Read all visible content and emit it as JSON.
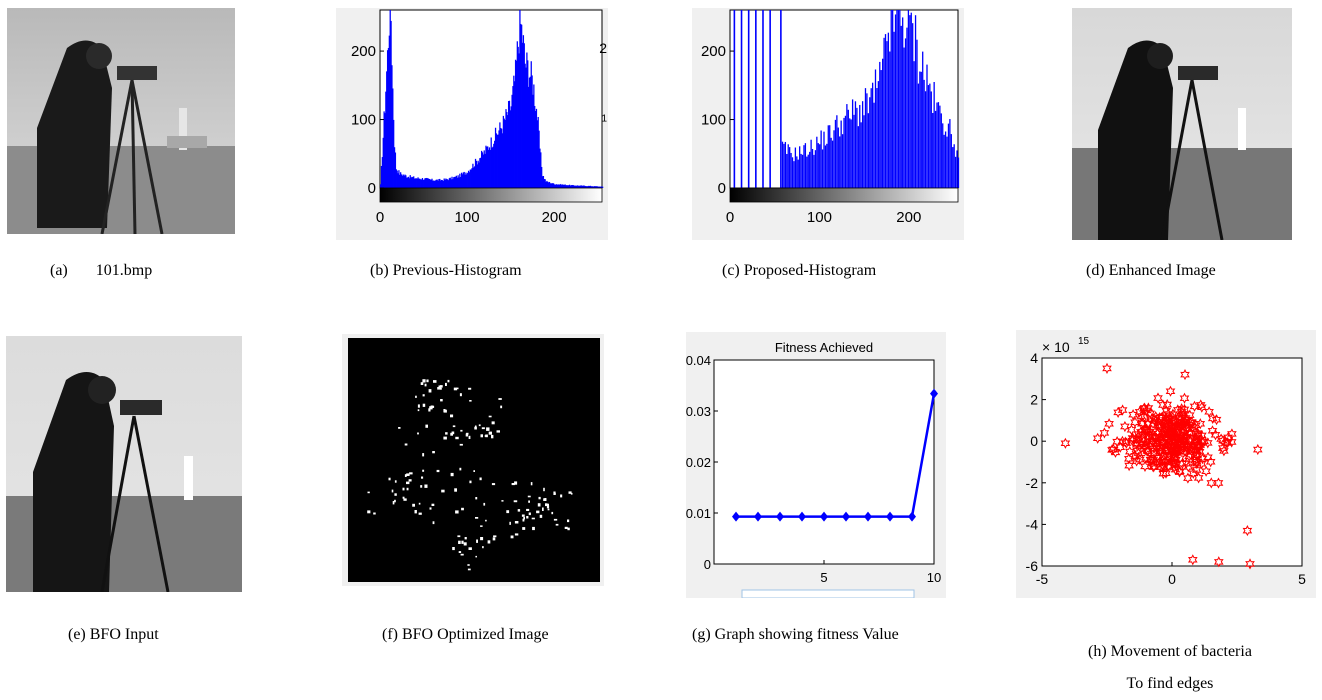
{
  "figure": {
    "a": {
      "caption_letter": "(a)",
      "caption_text": "101.bmp"
    },
    "b": {
      "caption": "(b) Previous-Histogram"
    },
    "c": {
      "caption": "(c) Proposed-Histogram"
    },
    "d": {
      "caption": "(d) Enhanced Image"
    },
    "e": {
      "caption": "(e) BFO Input"
    },
    "f": {
      "caption": "(f) BFO Optimized Image"
    },
    "g": {
      "caption": "(g) Graph showing fitness Value"
    },
    "h": {
      "caption_line1": "(h) Movement of bacteria",
      "caption_line2": "To find edges"
    }
  },
  "chart_data": [
    {
      "id": "b",
      "type": "bar",
      "x_ticks": [
        0,
        100,
        200
      ],
      "y_ticks": [
        "0",
        "100",
        "200"
      ],
      "xlim": [
        0,
        255
      ],
      "ylim": [
        0,
        260
      ],
      "bar_color": "#0000ff",
      "colorbar": "grayscale",
      "right_edge_labels": [
        "2",
        "1"
      ],
      "profile": [
        [
          0,
          5
        ],
        [
          8,
          200
        ],
        [
          10,
          260
        ],
        [
          12,
          260
        ],
        [
          14,
          150
        ],
        [
          16,
          70
        ],
        [
          18,
          30
        ],
        [
          22,
          22
        ],
        [
          30,
          18
        ],
        [
          40,
          15
        ],
        [
          50,
          14
        ],
        [
          60,
          12
        ],
        [
          70,
          12
        ],
        [
          80,
          14
        ],
        [
          90,
          18
        ],
        [
          100,
          25
        ],
        [
          110,
          40
        ],
        [
          120,
          55
        ],
        [
          130,
          75
        ],
        [
          140,
          95
        ],
        [
          145,
          110
        ],
        [
          150,
          125
        ],
        [
          155,
          170
        ],
        [
          158,
          220
        ],
        [
          160,
          255
        ],
        [
          163,
          230
        ],
        [
          166,
          190
        ],
        [
          170,
          180
        ],
        [
          175,
          160
        ],
        [
          180,
          110
        ],
        [
          183,
          60
        ],
        [
          186,
          20
        ],
        [
          190,
          10
        ],
        [
          200,
          6
        ],
        [
          220,
          4
        ],
        [
          240,
          3
        ],
        [
          255,
          2
        ]
      ]
    },
    {
      "id": "c",
      "type": "bar",
      "x_ticks": [
        0,
        100,
        200
      ],
      "y_ticks": [
        "0",
        "100",
        "200"
      ],
      "xlim": [
        0,
        255
      ],
      "ylim": [
        0,
        260
      ],
      "bar_color": "#0000ff",
      "colorbar": "grayscale",
      "spike_positions": [
        4,
        12,
        20,
        28,
        36,
        44,
        56
      ],
      "profile": [
        [
          58,
          60
        ],
        [
          70,
          50
        ],
        [
          80,
          55
        ],
        [
          90,
          60
        ],
        [
          100,
          70
        ],
        [
          110,
          80
        ],
        [
          120,
          95
        ],
        [
          130,
          105
        ],
        [
          140,
          115
        ],
        [
          150,
          120
        ],
        [
          160,
          140
        ],
        [
          170,
          170
        ],
        [
          175,
          230
        ],
        [
          180,
          255
        ],
        [
          185,
          260
        ],
        [
          190,
          250
        ],
        [
          195,
          255
        ],
        [
          200,
          240
        ],
        [
          205,
          230
        ],
        [
          210,
          200
        ],
        [
          220,
          160
        ],
        [
          230,
          120
        ],
        [
          240,
          100
        ],
        [
          250,
          70
        ],
        [
          255,
          40
        ]
      ]
    },
    {
      "id": "g",
      "type": "line",
      "title": "Fitness Achieved",
      "x": [
        1,
        2,
        3,
        4,
        5,
        6,
        7,
        8,
        9,
        10
      ],
      "y": [
        0.0093,
        0.0093,
        0.0093,
        0.0093,
        0.0093,
        0.0093,
        0.0093,
        0.0093,
        0.0093,
        0.0334
      ],
      "x_ticks": [
        "5",
        "10"
      ],
      "x_tick_values": [
        5,
        10
      ],
      "y_ticks": [
        "0",
        "0.01",
        "0.02",
        "0.03",
        "0.04"
      ],
      "y_tick_values": [
        0,
        0.01,
        0.02,
        0.03,
        0.04
      ],
      "xlim": [
        0,
        10
      ],
      "ylim": [
        0,
        0.04
      ],
      "line_color": "#0000ff",
      "marker": "diamond"
    },
    {
      "id": "h",
      "type": "scatter",
      "exponent_label": "× 10",
      "exponent_power": "15",
      "x_ticks": [
        "-5",
        "0",
        "5"
      ],
      "x_tick_values": [
        -5,
        0,
        5
      ],
      "y_ticks": [
        "4",
        "2",
        "0",
        "-2",
        "-4",
        "-6"
      ],
      "y_tick_values": [
        4,
        2,
        0,
        -2,
        -4,
        -6
      ],
      "xlim": [
        -5,
        5
      ],
      "ylim": [
        -6,
        4
      ],
      "marker_color": "#ff0000",
      "marker": "hexagram",
      "outliers": [
        [
          -4.1,
          -0.1
        ],
        [
          -2.5,
          3.5
        ],
        [
          0.8,
          -5.7
        ],
        [
          1.8,
          -5.8
        ],
        [
          2.9,
          -4.3
        ],
        [
          3.0,
          -5.9
        ],
        [
          3.3,
          -0.4
        ],
        [
          0.5,
          3.2
        ],
        [
          -1.9,
          1.5
        ],
        [
          -2.6,
          0.4
        ]
      ]
    }
  ]
}
